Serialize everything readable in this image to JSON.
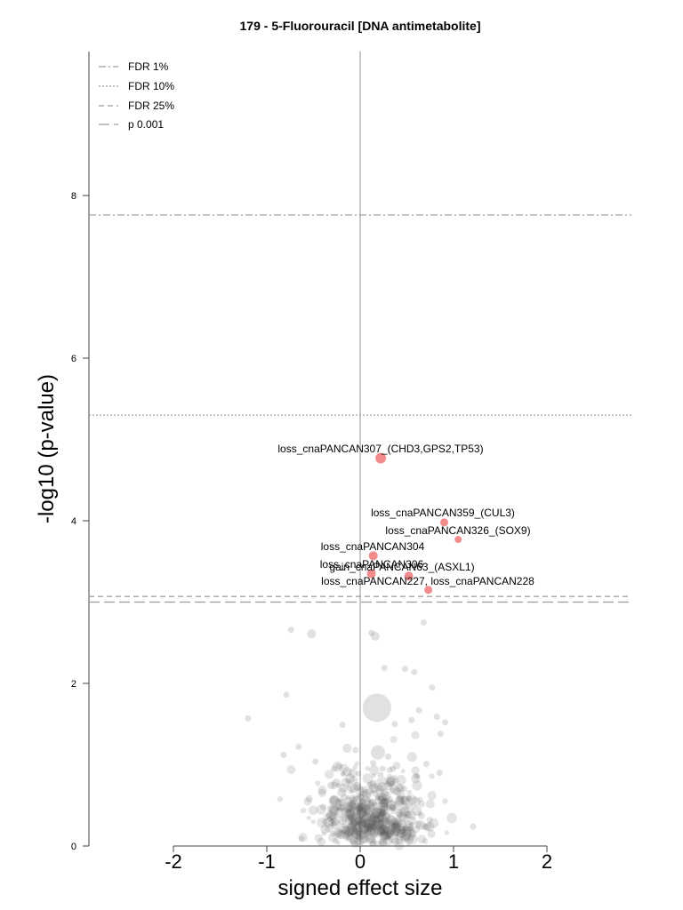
{
  "chart_data": {
    "type": "scatter",
    "title": "179 - 5-Fluorouracil [DNA antimetabolite]",
    "xlabel": "signed effect size",
    "ylabel": "-log10 (p-value)",
    "xlim": [
      -2.9,
      2.9
    ],
    "ylim": [
      0,
      9.8
    ],
    "x_ticks": [
      "-2",
      "-1",
      "0",
      "1",
      "2"
    ],
    "y_ticks": [
      "0",
      "2",
      "4",
      "6",
      "8"
    ],
    "thresholds": [
      {
        "name": "FDR 1%",
        "y": 7.76,
        "style": "dash-dot"
      },
      {
        "name": "FDR 10%",
        "y": 5.3,
        "style": "dotted"
      },
      {
        "name": "FDR 25%",
        "y": 3.07,
        "style": "dashed"
      },
      {
        "name": "p 0.001",
        "y": 3.0,
        "style": "long-dash"
      }
    ],
    "legend_position": "top-left",
    "colors": {
      "significant": "#f08080",
      "background": "#888888",
      "zero_line": "#c8c8c8"
    },
    "highlighted": [
      {
        "label": "loss_cnaPANCAN307_(CHD3,GPS2,TP53)",
        "x": 0.22,
        "y": 4.77,
        "size": 10
      },
      {
        "label": "loss_cnaPANCAN359_(CUL3)",
        "x": 0.9,
        "y": 3.98,
        "size": 7
      },
      {
        "label": "loss_cnaPANCAN326_(SOX9)",
        "x": 1.05,
        "y": 3.77,
        "size": 6
      },
      {
        "label": "loss_cnaPANCAN304",
        "x": 0.14,
        "y": 3.57,
        "size": 8
      },
      {
        "label": "loss_cnaPANCAN306",
        "x": 0.12,
        "y": 3.35,
        "size": 8
      },
      {
        "label": "gain_cnaPANCAN63_(ASXL1)",
        "x": 0.52,
        "y": 3.32,
        "size": 8
      },
      {
        "label": "loss_cnaPANCAN227, loss_cnaPANCAN228",
        "x": 0.73,
        "y": 3.15,
        "size": 7
      }
    ],
    "background_points": [
      [
        -0.74,
        2.66
      ],
      [
        -0.52,
        2.61
      ],
      [
        0.12,
        2.62
      ],
      [
        0.16,
        2.58
      ],
      [
        0.68,
        2.75
      ],
      [
        0.18,
        1.7
      ],
      [
        0.19,
        1.15
      ],
      [
        -0.19,
        1.49
      ],
      [
        -1.2,
        1.57
      ],
      [
        -0.79,
        1.86
      ],
      [
        0.77,
        1.95
      ],
      [
        0.58,
        2.14
      ],
      [
        0.48,
        2.18
      ],
      [
        0.26,
        2.19
      ],
      [
        -0.66,
        1.22
      ],
      [
        -0.48,
        1.04
      ],
      [
        -0.28,
        0.95
      ],
      [
        0.35,
        0.95
      ],
      [
        0.52,
        0.58
      ],
      [
        0.3,
        1.1
      ],
      [
        0.24,
        0.95
      ],
      [
        0.55,
        1.55
      ],
      [
        0.6,
        0.86
      ],
      [
        0.86,
        1.38
      ],
      [
        0.71,
        1.01
      ],
      [
        0.85,
        0.9
      ],
      [
        0.91,
        1.52
      ],
      [
        0.37,
        1.5
      ],
      [
        0.14,
        1.02
      ],
      [
        -0.23,
        0.98
      ],
      [
        -0.05,
        1.18
      ],
      [
        -0.82,
        1.12
      ],
      [
        0.63,
        1.67
      ],
      [
        0.82,
        1.59
      ],
      [
        0.22,
        0.87
      ]
    ]
  }
}
